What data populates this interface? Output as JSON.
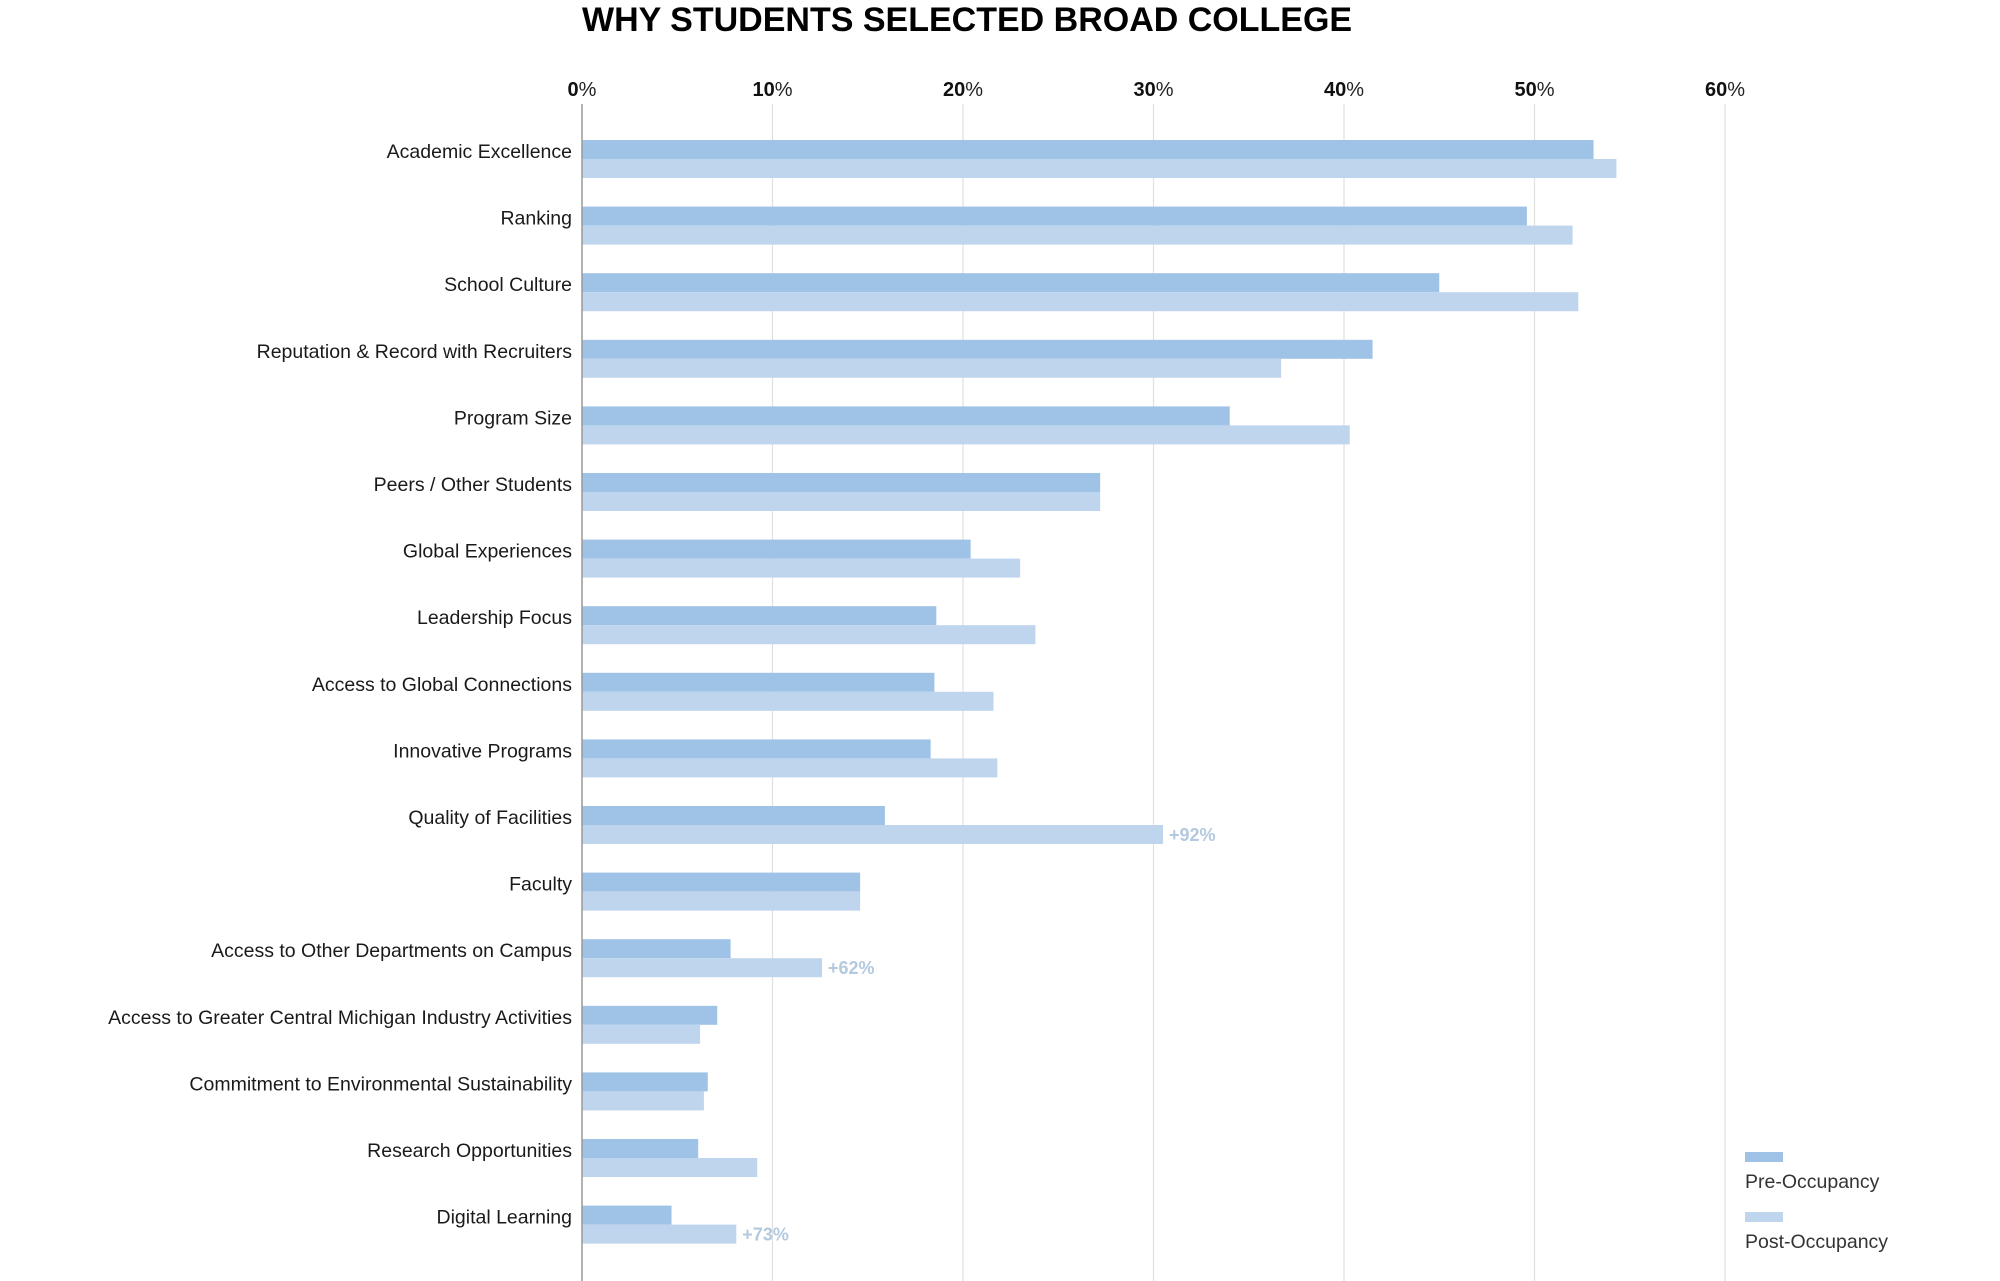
{
  "chart_data": {
    "type": "bar",
    "orientation": "horizontal",
    "title": "WHY STUDENTS SELECTED BROAD COLLEGE",
    "xlabel": "",
    "ylabel": "",
    "xlim": [
      0,
      60
    ],
    "x_ticks": [
      {
        "num": "0",
        "suffix": "%"
      },
      {
        "num": "10",
        "suffix": "%"
      },
      {
        "num": "20",
        "suffix": "%"
      },
      {
        "num": "30",
        "suffix": "%"
      },
      {
        "num": "40",
        "suffix": "%"
      },
      {
        "num": "50",
        "suffix": "%"
      },
      {
        "num": "60",
        "suffix": "%"
      }
    ],
    "grid": true,
    "legend_position": "bottom-right",
    "categories": [
      "Academic Excellence",
      "Ranking",
      "School Culture",
      "Reputation & Record with Recruiters",
      "Program Size",
      "Peers / Other Students",
      "Global Experiences",
      "Leadership Focus",
      "Access to Global Connections",
      "Innovative Programs",
      "Quality of Facilities",
      "Faculty",
      "Access to Other Departments on Campus",
      "Access to Greater Central Michigan Industry Activities",
      "Commitment to Environmental Sustainability",
      "Research Opportunities",
      "Digital Learning"
    ],
    "series": [
      {
        "name": "Pre-Occupancy",
        "color": "#9fc2e7",
        "values": [
          53.1,
          49.6,
          45.0,
          41.5,
          34.0,
          27.2,
          20.4,
          18.6,
          18.5,
          18.3,
          15.9,
          14.6,
          7.8,
          7.1,
          6.6,
          6.1,
          4.7
        ]
      },
      {
        "name": "Post-Occupancy",
        "color": "#bfd5ed",
        "values": [
          54.3,
          52.0,
          52.3,
          36.7,
          40.3,
          27.2,
          23.0,
          23.8,
          21.6,
          21.8,
          30.5,
          14.6,
          12.6,
          6.2,
          6.4,
          9.2,
          8.1
        ]
      }
    ],
    "annotations": [
      {
        "category_index": 10,
        "series_index": 1,
        "text": "+92%"
      },
      {
        "category_index": 12,
        "series_index": 1,
        "text": "+62%"
      },
      {
        "category_index": 16,
        "series_index": 1,
        "text": "+73%"
      }
    ]
  }
}
